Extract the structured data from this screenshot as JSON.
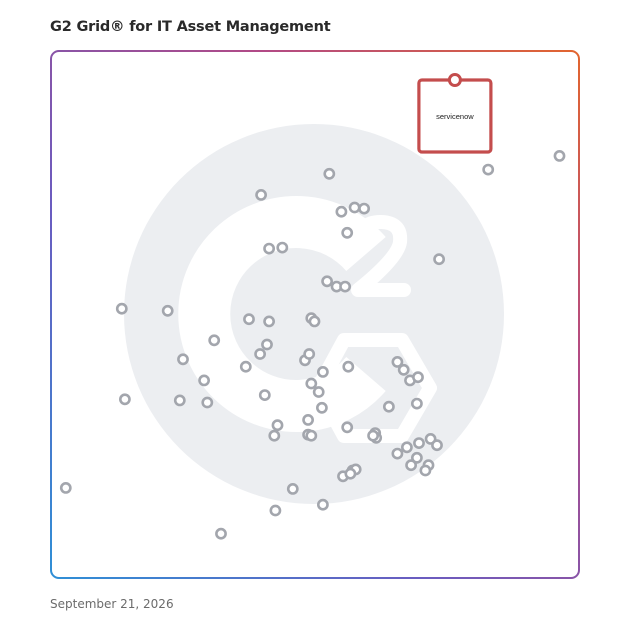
{
  "header": {
    "title": "G2 Grid® for IT Asset Management"
  },
  "footer": {
    "date": "September 21, 2026"
  },
  "colors": {
    "border_gradient": [
      "#3f7fd0",
      "#6f5bb8",
      "#b04a8c",
      "#e0643a"
    ],
    "dot_stroke": "#a3a6ad",
    "highlight": "#c44d4d",
    "watermark": "#eceef1"
  },
  "chart_data": {
    "type": "scatter",
    "title": "G2 Grid® for IT Asset Management",
    "xlabel": "",
    "ylabel": "",
    "xlim": [
      0,
      100
    ],
    "ylim": [
      0,
      100
    ],
    "quadrant_split": {
      "x": 50,
      "y": 50
    },
    "grid": true,
    "highlight": {
      "label": "servicenow",
      "x": 76.5,
      "y": 94.5
    },
    "points": [
      {
        "x": 52.7,
        "y": 76.7
      },
      {
        "x": 39.8,
        "y": 72.7
      },
      {
        "x": 55.0,
        "y": 69.5
      },
      {
        "x": 57.5,
        "y": 70.3
      },
      {
        "x": 59.3,
        "y": 70.1
      },
      {
        "x": 56.1,
        "y": 65.5
      },
      {
        "x": 41.3,
        "y": 62.5
      },
      {
        "x": 43.8,
        "y": 62.7
      },
      {
        "x": 52.3,
        "y": 56.3
      },
      {
        "x": 54.1,
        "y": 55.3
      },
      {
        "x": 55.7,
        "y": 55.3
      },
      {
        "x": 73.5,
        "y": 60.5
      },
      {
        "x": 82.8,
        "y": 77.5
      },
      {
        "x": 96.3,
        "y": 80.1
      },
      {
        "x": 13.4,
        "y": 51.1
      },
      {
        "x": 22.1,
        "y": 50.7
      },
      {
        "x": 37.5,
        "y": 49.1
      },
      {
        "x": 41.3,
        "y": 48.7
      },
      {
        "x": 49.3,
        "y": 49.3
      },
      {
        "x": 49.9,
        "y": 48.7
      },
      {
        "x": 30.9,
        "y": 45.1
      },
      {
        "x": 40.9,
        "y": 44.3
      },
      {
        "x": 39.6,
        "y": 42.5
      },
      {
        "x": 25.0,
        "y": 41.5
      },
      {
        "x": 36.9,
        "y": 40.1
      },
      {
        "x": 29.0,
        "y": 37.5
      },
      {
        "x": 48.1,
        "y": 41.3
      },
      {
        "x": 48.9,
        "y": 42.5
      },
      {
        "x": 51.5,
        "y": 39.1
      },
      {
        "x": 56.3,
        "y": 40.1
      },
      {
        "x": 49.3,
        "y": 36.9
      },
      {
        "x": 50.7,
        "y": 35.3
      },
      {
        "x": 14.0,
        "y": 33.9
      },
      {
        "x": 24.4,
        "y": 33.7
      },
      {
        "x": 29.6,
        "y": 33.3
      },
      {
        "x": 40.5,
        "y": 34.7
      },
      {
        "x": 51.3,
        "y": 32.3
      },
      {
        "x": 48.7,
        "y": 30.0
      },
      {
        "x": 42.9,
        "y": 29.0
      },
      {
        "x": 42.3,
        "y": 27.0
      },
      {
        "x": 48.7,
        "y": 27.2
      },
      {
        "x": 49.3,
        "y": 27.0
      },
      {
        "x": 56.1,
        "y": 28.6
      },
      {
        "x": 64.0,
        "y": 32.5
      },
      {
        "x": 65.6,
        "y": 41.0
      },
      {
        "x": 66.8,
        "y": 39.5
      },
      {
        "x": 68.0,
        "y": 37.5
      },
      {
        "x": 69.5,
        "y": 38.1
      },
      {
        "x": 69.3,
        "y": 33.1
      },
      {
        "x": 61.4,
        "y": 27.5
      },
      {
        "x": 61.6,
        "y": 26.6
      },
      {
        "x": 61.0,
        "y": 27.0
      },
      {
        "x": 65.6,
        "y": 23.6
      },
      {
        "x": 67.4,
        "y": 24.8
      },
      {
        "x": 68.2,
        "y": 21.4
      },
      {
        "x": 69.7,
        "y": 25.6
      },
      {
        "x": 71.9,
        "y": 26.4
      },
      {
        "x": 73.1,
        "y": 25.2
      },
      {
        "x": 71.5,
        "y": 21.4
      },
      {
        "x": 69.3,
        "y": 22.8
      },
      {
        "x": 70.9,
        "y": 20.4
      },
      {
        "x": 57.1,
        "y": 20.4
      },
      {
        "x": 57.7,
        "y": 20.6
      },
      {
        "x": 55.3,
        "y": 19.3
      },
      {
        "x": 56.7,
        "y": 19.8
      },
      {
        "x": 45.8,
        "y": 16.9
      },
      {
        "x": 51.5,
        "y": 13.9
      },
      {
        "x": 2.8,
        "y": 17.1
      },
      {
        "x": 42.5,
        "y": 12.8
      },
      {
        "x": 32.2,
        "y": 8.4
      }
    ]
  }
}
